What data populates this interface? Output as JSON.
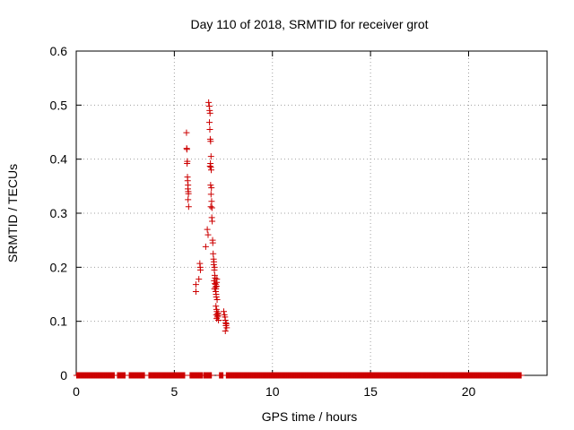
{
  "chart_data": {
    "type": "scatter",
    "title": "Day 110 of 2018, SRMTID for receiver grot",
    "xlabel": "GPS time / hours",
    "ylabel": "SRMTID / TECUs",
    "xlim": [
      0,
      24
    ],
    "ylim": [
      0,
      0.6
    ],
    "x_ticks": [
      0,
      5,
      10,
      15,
      20
    ],
    "y_ticks": [
      0,
      0.1,
      0.2,
      0.3,
      0.4,
      0.5,
      0.6
    ],
    "x_tick_labels": [
      "0",
      "5",
      "10",
      "15",
      "20"
    ],
    "y_tick_labels": [
      "0",
      "0.1",
      "0.2",
      "0.3",
      "0.4",
      "0.5",
      "0.6"
    ],
    "grid": true,
    "legend": "none",
    "marker": "plus",
    "color": "#cc0000",
    "zero_baseline_segments": [
      [
        0.02,
        1.95
      ],
      [
        2.1,
        2.5
      ],
      [
        2.7,
        3.5
      ],
      [
        3.7,
        5.55
      ],
      [
        5.8,
        6.45
      ],
      [
        6.5,
        6.9
      ],
      [
        7.3,
        7.5
      ],
      [
        7.65,
        22.7
      ]
    ],
    "zero_baseline_step": 0.03,
    "points": [
      [
        5.62,
        0.449
      ],
      [
        5.63,
        0.42
      ],
      [
        5.64,
        0.418
      ],
      [
        5.66,
        0.396
      ],
      [
        5.65,
        0.392
      ],
      [
        5.67,
        0.367
      ],
      [
        5.68,
        0.36
      ],
      [
        5.7,
        0.352
      ],
      [
        5.69,
        0.345
      ],
      [
        5.71,
        0.34
      ],
      [
        5.72,
        0.336
      ],
      [
        5.7,
        0.325
      ],
      [
        5.73,
        0.312
      ],
      [
        6.1,
        0.168
      ],
      [
        6.1,
        0.155
      ],
      [
        6.3,
        0.207
      ],
      [
        6.32,
        0.2
      ],
      [
        6.33,
        0.195
      ],
      [
        6.25,
        0.178
      ],
      [
        6.6,
        0.238
      ],
      [
        6.68,
        0.27
      ],
      [
        6.72,
        0.26
      ],
      [
        6.75,
        0.505
      ],
      [
        6.78,
        0.498
      ],
      [
        6.8,
        0.49
      ],
      [
        6.82,
        0.485
      ],
      [
        6.79,
        0.468
      ],
      [
        6.81,
        0.455
      ],
      [
        6.83,
        0.437
      ],
      [
        6.85,
        0.433
      ],
      [
        6.87,
        0.405
      ],
      [
        6.84,
        0.392
      ],
      [
        6.82,
        0.387
      ],
      [
        6.86,
        0.385
      ],
      [
        6.88,
        0.38
      ],
      [
        6.85,
        0.352
      ],
      [
        6.89,
        0.347
      ],
      [
        6.87,
        0.335
      ],
      [
        6.9,
        0.322
      ],
      [
        6.86,
        0.312
      ],
      [
        6.92,
        0.31
      ],
      [
        6.91,
        0.292
      ],
      [
        6.93,
        0.285
      ],
      [
        6.95,
        0.25
      ],
      [
        6.96,
        0.245
      ],
      [
        6.98,
        0.225
      ],
      [
        7.0,
        0.215
      ],
      [
        7.02,
        0.21
      ],
      [
        7.01,
        0.205
      ],
      [
        7.05,
        0.2
      ],
      [
        7.04,
        0.195
      ],
      [
        7.06,
        0.185
      ],
      [
        7.08,
        0.18
      ],
      [
        7.03,
        0.175
      ],
      [
        7.07,
        0.17
      ],
      [
        7.1,
        0.168
      ],
      [
        7.09,
        0.163
      ],
      [
        7.12,
        0.16
      ],
      [
        7.11,
        0.155
      ],
      [
        7.13,
        0.15
      ],
      [
        7.05,
        0.16
      ],
      [
        7.15,
        0.165
      ],
      [
        7.16,
        0.172
      ],
      [
        7.17,
        0.178
      ],
      [
        7.14,
        0.145
      ],
      [
        7.18,
        0.14
      ],
      [
        7.12,
        0.128
      ],
      [
        7.15,
        0.122
      ],
      [
        7.17,
        0.118
      ],
      [
        7.2,
        0.113
      ],
      [
        7.22,
        0.11
      ],
      [
        7.16,
        0.105
      ],
      [
        7.25,
        0.102
      ],
      [
        7.14,
        0.112
      ],
      [
        7.19,
        0.108
      ],
      [
        7.23,
        0.115
      ],
      [
        7.52,
        0.118
      ],
      [
        7.55,
        0.112
      ],
      [
        7.58,
        0.108
      ],
      [
        7.6,
        0.102
      ],
      [
        7.62,
        0.097
      ],
      [
        7.65,
        0.095
      ],
      [
        7.63,
        0.092
      ],
      [
        7.67,
        0.088
      ],
      [
        7.6,
        0.082
      ]
    ]
  }
}
